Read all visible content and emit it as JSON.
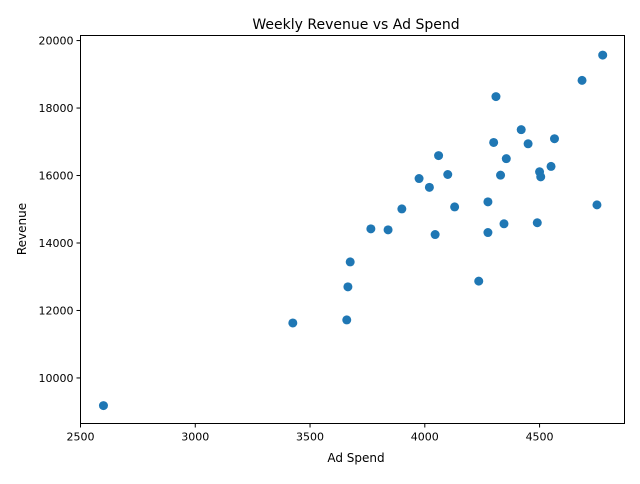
{
  "chart_data": {
    "type": "scatter",
    "title": "Weekly Revenue vs Ad Spend",
    "xlabel": "Ad Spend",
    "ylabel": "Revenue",
    "xlim": [
      2500,
      4870
    ],
    "ylim": [
      8650,
      20150
    ],
    "xticks": [
      2500,
      3000,
      3500,
      4000,
      4500
    ],
    "yticks": [
      10000,
      12000,
      14000,
      16000,
      18000,
      20000
    ],
    "grid": false,
    "marker_color": "#1f77b4",
    "points": [
      {
        "x": 2600,
        "y": 9180
      },
      {
        "x": 3425,
        "y": 11630
      },
      {
        "x": 3660,
        "y": 11720
      },
      {
        "x": 3665,
        "y": 12700
      },
      {
        "x": 3675,
        "y": 13440
      },
      {
        "x": 3765,
        "y": 14420
      },
      {
        "x": 3840,
        "y": 14390
      },
      {
        "x": 3900,
        "y": 15010
      },
      {
        "x": 3975,
        "y": 15910
      },
      {
        "x": 4020,
        "y": 15650
      },
      {
        "x": 4045,
        "y": 14250
      },
      {
        "x": 4060,
        "y": 16590
      },
      {
        "x": 4100,
        "y": 16030
      },
      {
        "x": 4130,
        "y": 15070
      },
      {
        "x": 4235,
        "y": 12870
      },
      {
        "x": 4275,
        "y": 14310
      },
      {
        "x": 4275,
        "y": 15220
      },
      {
        "x": 4300,
        "y": 16980
      },
      {
        "x": 4310,
        "y": 18340
      },
      {
        "x": 4330,
        "y": 16010
      },
      {
        "x": 4345,
        "y": 14570
      },
      {
        "x": 4355,
        "y": 16500
      },
      {
        "x": 4420,
        "y": 17360
      },
      {
        "x": 4450,
        "y": 16940
      },
      {
        "x": 4490,
        "y": 14600
      },
      {
        "x": 4500,
        "y": 16110
      },
      {
        "x": 4505,
        "y": 15960
      },
      {
        "x": 4550,
        "y": 16270
      },
      {
        "x": 4565,
        "y": 17090
      },
      {
        "x": 4685,
        "y": 18820
      },
      {
        "x": 4750,
        "y": 15130
      },
      {
        "x": 4775,
        "y": 19570
      }
    ]
  }
}
